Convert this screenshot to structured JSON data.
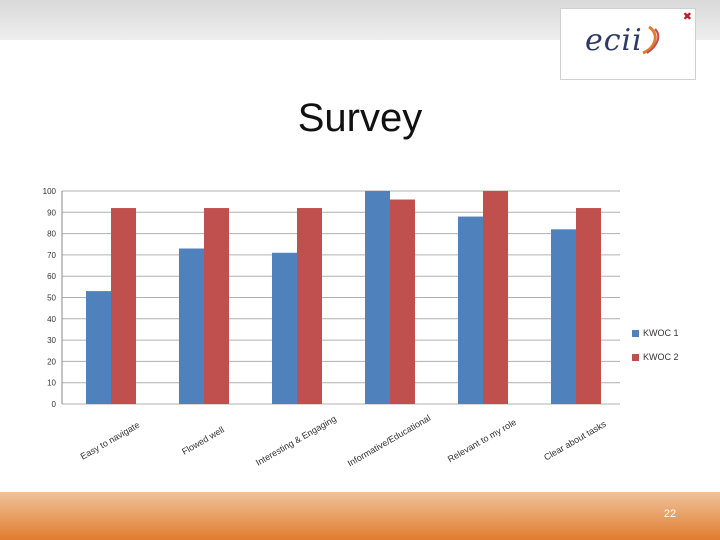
{
  "slide": {
    "title": "Survey",
    "page_number": "22",
    "logo_text": "ecii"
  },
  "colors": {
    "series1": "#4f81bd",
    "series2": "#c0504d",
    "grid": "#b0b0b0"
  },
  "chart_data": {
    "type": "bar",
    "categories": [
      "Easy to navigate",
      "Flowed well",
      "Interesting & Engaging",
      "Informative/Educational",
      "Relevant to my role",
      "Clear about tasks"
    ],
    "series": [
      {
        "name": "KWOC 1",
        "values": [
          53,
          73,
          71,
          100,
          88,
          82
        ]
      },
      {
        "name": "KWOC 2",
        "values": [
          92,
          92,
          92,
          96,
          100,
          92
        ]
      }
    ],
    "yticks": [
      0,
      10,
      20,
      30,
      40,
      50,
      60,
      70,
      80,
      90,
      100
    ],
    "ylim": [
      0,
      100
    ],
    "grid": true,
    "legend": "right",
    "title": "",
    "xlabel": "",
    "ylabel": ""
  }
}
